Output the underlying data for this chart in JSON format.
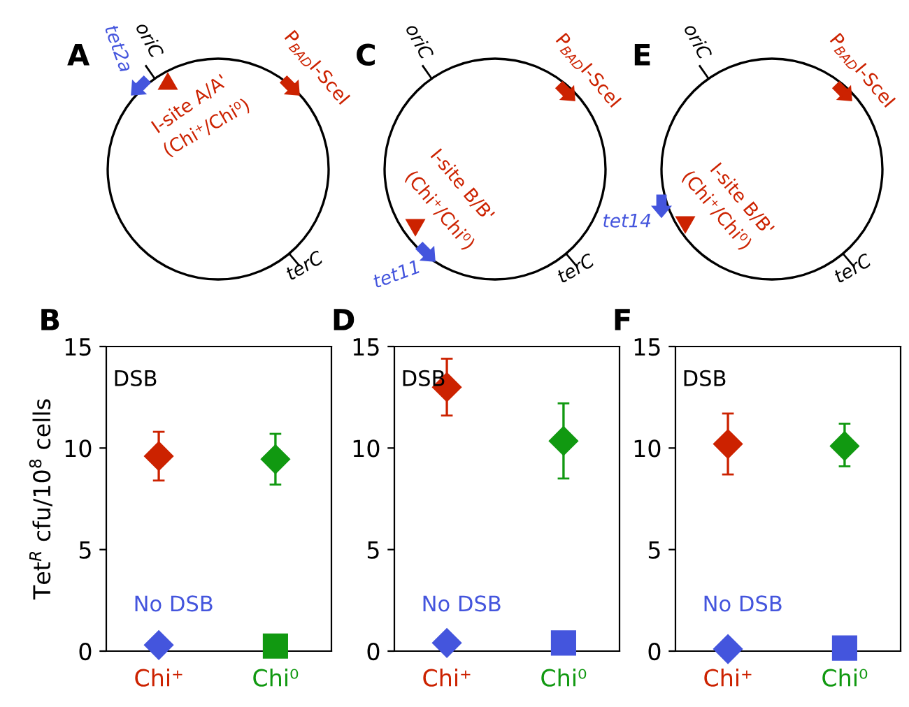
{
  "chart_data": [
    {
      "type": "other",
      "title": "A",
      "annotations": [
        "oriC",
        "tet2a",
        "P$_{BAD}$I-SceI",
        "I-site A/A'",
        "(Chi⁺/Chi⁰)",
        "terC"
      ]
    },
    {
      "type": "other",
      "title": "C",
      "annotations": [
        "oriC",
        "P$_{BAD}$I-SceI",
        "I-site B/B'",
        "(Chi⁺/Chi⁰)",
        "tet11",
        "terC"
      ]
    },
    {
      "type": "other",
      "title": "E",
      "annotations": [
        "oriC",
        "P$_{BAD}$I-SceI",
        "I-site B/B'",
        "(Chi⁺/Chi⁰)",
        "tet14",
        "terC"
      ]
    },
    {
      "type": "scatter",
      "title": "B",
      "ylabel": "Tet$^{R}$ cfu/10$^{8}$ cells",
      "categories": [
        "Chi⁺",
        "Chi⁰"
      ],
      "ylim": [
        0,
        15
      ],
      "yticks": [
        0,
        5,
        10,
        15
      ],
      "grid": false,
      "legend": false,
      "series": [
        {
          "name": "DSB",
          "colors": [
            "#cc2200",
            "#119911"
          ],
          "marker": "diamond",
          "values": [
            9.6,
            9.45
          ],
          "errors": [
            [
              8.4,
              10.8
            ],
            [
              8.2,
              10.7
            ]
          ]
        },
        {
          "name": "No DSB",
          "color": "#4455dd",
          "marker": "diamond",
          "values": [
            0.3,
            null
          ]
        },
        {
          "color": "#119911",
          "marker": "square",
          "values": [
            null,
            0.25
          ]
        }
      ]
    },
    {
      "type": "scatter",
      "title": "D",
      "categories": [
        "Chi⁺",
        "Chi⁰"
      ],
      "ylim": [
        0,
        15
      ],
      "yticks": [
        0,
        5,
        10,
        15
      ],
      "grid": false,
      "legend": false,
      "series": [
        {
          "name": "DSB",
          "colors": [
            "#cc2200",
            "#119911"
          ],
          "marker": "diamond",
          "values": [
            13.0,
            10.35
          ],
          "errors": [
            [
              11.6,
              14.4
            ],
            [
              8.5,
              12.2
            ]
          ]
        },
        {
          "name": "No DSB",
          "color": "#4455dd",
          "marker": "diamond",
          "values": [
            0.4,
            null
          ]
        },
        {
          "color": "#4455dd",
          "marker": "square",
          "values": [
            null,
            0.4
          ]
        }
      ]
    },
    {
      "type": "scatter",
      "title": "F",
      "categories": [
        "Chi⁺",
        "Chi⁰"
      ],
      "ylim": [
        0,
        15
      ],
      "yticks": [
        0,
        5,
        10,
        15
      ],
      "grid": false,
      "legend": false,
      "series": [
        {
          "name": "DSB",
          "colors": [
            "#cc2200",
            "#119911"
          ],
          "marker": "diamond",
          "values": [
            10.2,
            10.1
          ],
          "errors": [
            [
              8.7,
              11.7
            ],
            [
              9.1,
              11.2
            ]
          ]
        },
        {
          "name": "No DSB",
          "color": "#4455dd",
          "marker": "diamond",
          "values": [
            0.1,
            null
          ]
        },
        {
          "color": "#4455dd",
          "marker": "square",
          "values": [
            null,
            0.15
          ]
        }
      ]
    }
  ]
}
